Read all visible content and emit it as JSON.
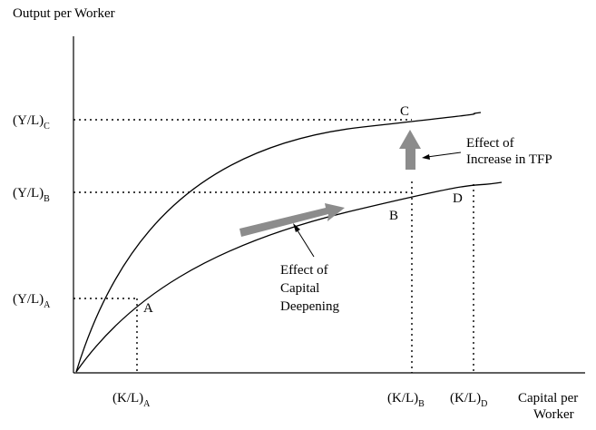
{
  "chart_data": {
    "type": "line",
    "title": "",
    "ylabel": "Output per Worker",
    "xlabel_line1": "Capital per",
    "xlabel_line2": "Worker",
    "y_ticks": [
      {
        "main": "(Y/L)",
        "sub": "A"
      },
      {
        "main": "(Y/L)",
        "sub": "B"
      },
      {
        "main": "(Y/L)",
        "sub": "C"
      }
    ],
    "x_ticks": [
      {
        "main": "(K/L)",
        "sub": "A"
      },
      {
        "main": "(K/L)",
        "sub": "B"
      },
      {
        "main": "(K/L)",
        "sub": "D"
      }
    ],
    "points": [
      "A",
      "B",
      "C",
      "D"
    ],
    "series": [],
    "annotations": {
      "capital_deepening": [
        "Effect of",
        "Capital",
        "Deepening"
      ],
      "tfp": [
        "Effect of",
        "Increase in TFP"
      ]
    },
    "colors": {
      "curve": "#000000",
      "arrow": "#8c8c8c"
    }
  }
}
